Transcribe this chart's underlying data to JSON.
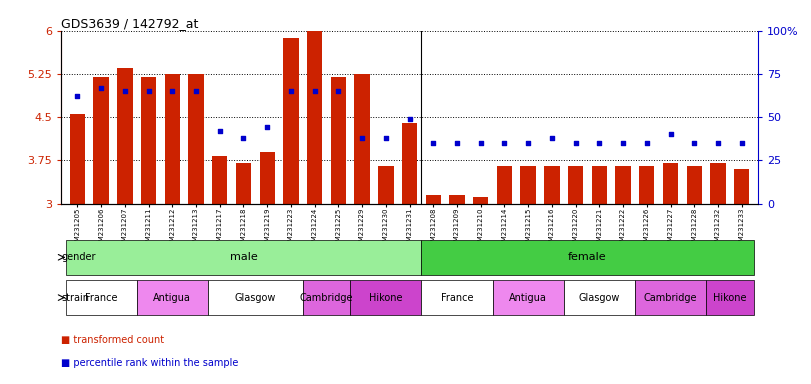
{
  "title": "GDS3639 / 142792_at",
  "samples": [
    "GSM231205",
    "GSM231206",
    "GSM231207",
    "GSM231211",
    "GSM231212",
    "GSM231213",
    "GSM231217",
    "GSM231218",
    "GSM231219",
    "GSM231223",
    "GSM231224",
    "GSM231225",
    "GSM231229",
    "GSM231230",
    "GSM231231",
    "GSM231208",
    "GSM231209",
    "GSM231210",
    "GSM231214",
    "GSM231215",
    "GSM231216",
    "GSM231220",
    "GSM231221",
    "GSM231222",
    "GSM231226",
    "GSM231227",
    "GSM231228",
    "GSM231232",
    "GSM231233"
  ],
  "bar_values": [
    4.55,
    5.19,
    5.36,
    5.19,
    5.25,
    5.25,
    3.82,
    3.7,
    3.9,
    5.88,
    6.0,
    5.2,
    5.25,
    3.65,
    4.4,
    3.15,
    3.15,
    3.12,
    3.65,
    3.65,
    3.65,
    3.65,
    3.65,
    3.65,
    3.65,
    3.7,
    3.65,
    3.7,
    3.6
  ],
  "percentile_values": [
    62,
    67,
    65,
    65,
    65,
    65,
    42,
    38,
    44,
    65,
    65,
    65,
    38,
    38,
    49,
    35,
    35,
    35,
    35,
    35,
    38,
    35,
    35,
    35,
    35,
    40,
    35,
    35,
    35
  ],
  "ylim_left": [
    3.0,
    6.0
  ],
  "ylim_right": [
    0,
    100
  ],
  "yticks_left": [
    3.0,
    3.75,
    4.5,
    5.25,
    6.0
  ],
  "yticks_right": [
    0,
    25,
    50,
    75,
    100
  ],
  "ytick_labels_left": [
    "3",
    "3.75",
    "4.5",
    "5.25",
    "6"
  ],
  "ytick_labels_right": [
    "0",
    "25",
    "50",
    "75",
    "100%"
  ],
  "bar_color": "#CC2200",
  "dot_color": "#0000CC",
  "gender_male_color": "#99EE99",
  "gender_female_color": "#44CC44",
  "strain_colors": {
    "France": "#FFFFFF",
    "Antigua": "#EE88EE",
    "Glasgow": "#FFFFFF",
    "Cambridge": "#DD66DD",
    "Hikone": "#CC44CC"
  },
  "gender_groups": [
    {
      "label": "male",
      "start": 0,
      "end": 14
    },
    {
      "label": "female",
      "start": 15,
      "end": 28
    }
  ],
  "strain_groups": [
    {
      "label": "France",
      "start": 0,
      "end": 2
    },
    {
      "label": "Antigua",
      "start": 3,
      "end": 5
    },
    {
      "label": "Glasgow",
      "start": 6,
      "end": 9
    },
    {
      "label": "Cambridge",
      "start": 10,
      "end": 11
    },
    {
      "label": "Hikone",
      "start": 12,
      "end": 14
    },
    {
      "label": "France",
      "start": 15,
      "end": 17
    },
    {
      "label": "Antigua",
      "start": 18,
      "end": 20
    },
    {
      "label": "Glasgow",
      "start": 21,
      "end": 23
    },
    {
      "label": "Cambridge",
      "start": 24,
      "end": 26
    },
    {
      "label": "Hikone",
      "start": 27,
      "end": 28
    }
  ],
  "legend_items": [
    {
      "color": "#CC2200",
      "label": "transformed count"
    },
    {
      "color": "#0000CC",
      "label": "percentile rank within the sample"
    }
  ]
}
